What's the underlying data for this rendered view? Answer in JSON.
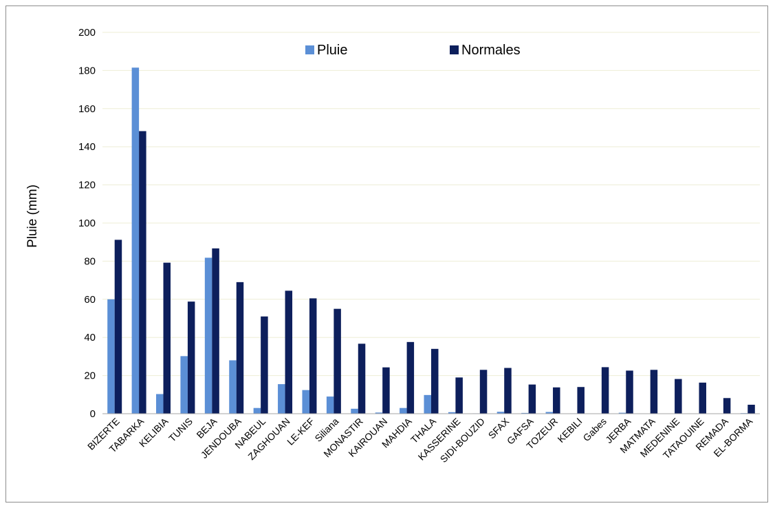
{
  "chart_data": {
    "type": "bar",
    "title": "",
    "xlabel": "",
    "ylabel": "Pluie (mm)",
    "ylim": [
      0,
      200
    ],
    "yticks": [
      0,
      20,
      40,
      60,
      80,
      100,
      120,
      140,
      160,
      180,
      200
    ],
    "grid": "horizontal",
    "legend_position": "top-center",
    "categories": [
      "BIZERTE",
      "TABARKA",
      "KELIBIA",
      "TUNIS",
      "BEJA",
      "JENDOUBA",
      "NABEUL",
      "ZAGHOUAN",
      "LE-KEF",
      "Siliana",
      "MONASTIR",
      "KAIROUAN",
      "MAHDIA",
      "THALA",
      "KASSERINE",
      "SIDI-BOUZID",
      "SFAX",
      "GAFSA",
      "TOZEUR",
      "KEBILI",
      "Gabes",
      "JERBA",
      "MATMATA",
      "MEDENINE",
      "TATAOUINE",
      "REMADA",
      "EL-BORMA"
    ],
    "series": [
      {
        "name": "Pluie",
        "color": "#5b8fd6",
        "values": [
          60,
          181.5,
          10.3,
          30.2,
          81.8,
          28,
          3,
          15.5,
          12.4,
          9,
          2.6,
          0.6,
          3,
          9.8,
          0.8,
          0.2,
          1,
          0.4,
          0.9,
          0.2,
          0,
          0.5,
          0,
          0,
          0,
          0,
          0.3
        ]
      },
      {
        "name": "Normales",
        "color": "#0d1f5c",
        "values": [
          91.2,
          148.2,
          79.2,
          58.8,
          86.7,
          69,
          51,
          64.5,
          60.5,
          55,
          36.7,
          24.3,
          37.6,
          34,
          19,
          23,
          24,
          15.3,
          13.8,
          14,
          24.4,
          22.6,
          23,
          18.2,
          16.3,
          8.2,
          4.7
        ]
      }
    ]
  }
}
